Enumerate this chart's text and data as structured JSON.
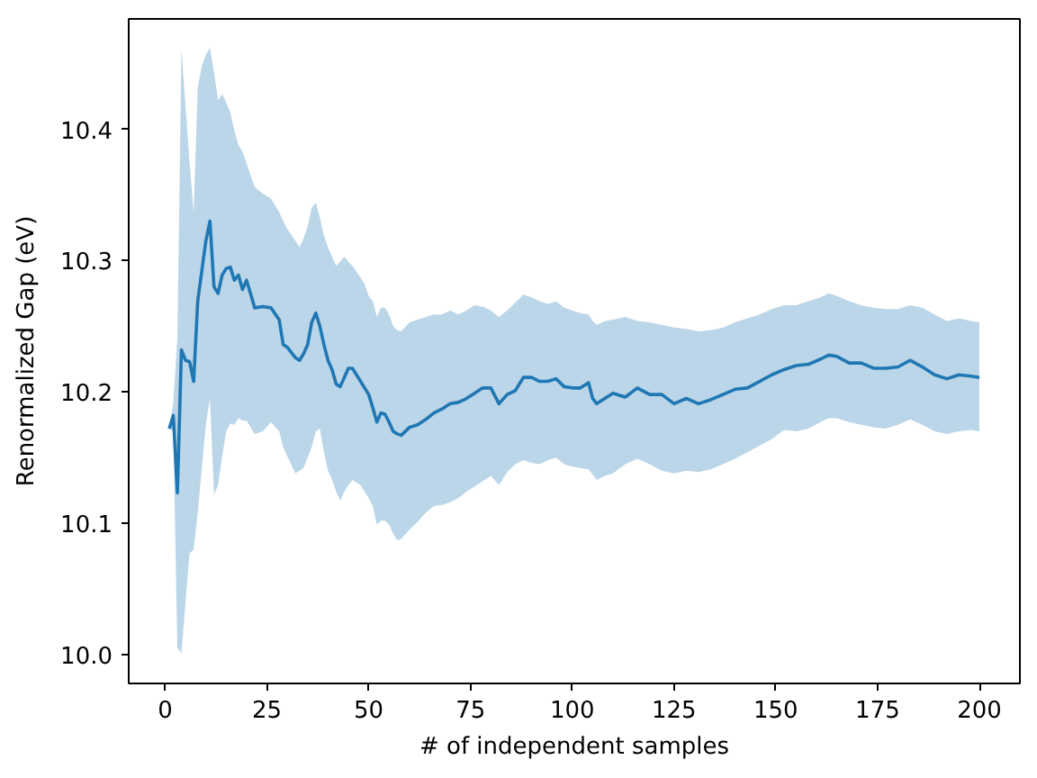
{
  "chart_data": {
    "type": "line",
    "xlabel": "# of independent samples",
    "ylabel": "Renormalized Gap (eV)",
    "x": [
      1,
      2,
      3,
      4,
      5,
      6,
      7,
      8,
      9,
      10,
      11,
      12,
      13,
      14,
      15,
      16,
      17,
      18,
      19,
      20,
      22,
      24,
      26,
      28,
      29,
      30,
      32,
      33,
      34,
      35,
      36,
      37,
      38,
      39,
      40,
      41,
      42,
      43,
      44,
      45,
      46,
      48,
      49,
      50,
      51,
      52,
      53,
      54,
      55,
      56,
      57,
      58,
      60,
      62,
      64,
      66,
      68,
      70,
      72,
      74,
      76,
      78,
      80,
      82,
      84,
      86,
      88,
      90,
      92,
      94,
      96,
      98,
      100,
      102,
      104,
      105,
      106,
      108,
      110,
      113,
      116,
      119,
      122,
      125,
      128,
      131,
      134,
      137,
      140,
      143,
      146,
      149,
      152,
      155,
      158,
      161,
      163,
      165,
      168,
      171,
      174,
      177,
      180,
      183,
      186,
      189,
      192,
      195,
      198,
      200
    ],
    "series": [
      {
        "color": "#1f77b4",
        "values": [
          10.172,
          10.182,
          10.123,
          10.232,
          10.224,
          10.223,
          10.208,
          10.269,
          10.292,
          10.315,
          10.33,
          10.28,
          10.275,
          10.289,
          10.294,
          10.295,
          10.285,
          10.289,
          10.278,
          10.285,
          10.264,
          10.265,
          10.264,
          10.255,
          10.236,
          10.234,
          10.226,
          10.224,
          10.229,
          10.236,
          10.253,
          10.26,
          10.25,
          10.236,
          10.224,
          10.217,
          10.206,
          10.204,
          10.211,
          10.218,
          10.218,
          10.208,
          10.203,
          10.198,
          10.188,
          10.177,
          10.184,
          10.183,
          10.177,
          10.17,
          10.168,
          10.167,
          10.173,
          10.175,
          10.179,
          10.184,
          10.187,
          10.191,
          10.192,
          10.195,
          10.199,
          10.203,
          10.203,
          10.191,
          10.198,
          10.201,
          10.211,
          10.211,
          10.208,
          10.208,
          10.21,
          10.204,
          10.203,
          10.203,
          10.207,
          10.195,
          10.191,
          10.195,
          10.199,
          10.196,
          10.203,
          10.198,
          10.198,
          10.191,
          10.195,
          10.191,
          10.194,
          10.198,
          10.202,
          10.203,
          10.208,
          10.213,
          10.217,
          10.22,
          10.221,
          10.225,
          10.228,
          10.227,
          10.222,
          10.222,
          10.218,
          10.218,
          10.219,
          10.224,
          10.219,
          10.213,
          10.21,
          10.213,
          10.212,
          10.211
        ],
        "lower": [
          10.172,
          10.17,
          10.005,
          10.001,
          10.04,
          10.077,
          10.08,
          10.108,
          10.142,
          10.175,
          10.195,
          10.122,
          10.129,
          10.151,
          10.17,
          10.176,
          10.175,
          10.18,
          10.178,
          10.178,
          10.168,
          10.17,
          10.177,
          10.17,
          10.158,
          10.151,
          10.138,
          10.14,
          10.142,
          10.15,
          10.158,
          10.17,
          10.172,
          10.154,
          10.14,
          10.133,
          10.124,
          10.117,
          10.124,
          10.129,
          10.133,
          10.129,
          10.124,
          10.119,
          10.113,
          10.099,
          10.102,
          10.102,
          10.099,
          10.092,
          10.087,
          10.088,
          10.095,
          10.101,
          10.108,
          10.113,
          10.114,
          10.116,
          10.119,
          10.124,
          10.128,
          10.132,
          10.136,
          10.129,
          10.139,
          10.145,
          10.148,
          10.146,
          10.145,
          10.148,
          10.15,
          10.145,
          10.143,
          10.142,
          10.141,
          10.137,
          10.133,
          10.136,
          10.138,
          10.145,
          10.149,
          10.145,
          10.14,
          10.138,
          10.14,
          10.139,
          10.141,
          10.145,
          10.149,
          10.154,
          10.159,
          10.164,
          10.171,
          10.17,
          10.172,
          10.177,
          10.18,
          10.18,
          10.177,
          10.175,
          10.173,
          10.172,
          10.175,
          10.179,
          10.175,
          10.17,
          10.168,
          10.17,
          10.171,
          10.17
        ],
        "upper": [
          10.172,
          10.192,
          10.241,
          10.461,
          10.418,
          10.374,
          10.337,
          10.432,
          10.448,
          10.457,
          10.462,
          10.443,
          10.422,
          10.427,
          10.42,
          10.413,
          10.399,
          10.388,
          10.383,
          10.374,
          10.356,
          10.351,
          10.347,
          10.337,
          10.33,
          10.324,
          10.315,
          10.31,
          10.317,
          10.326,
          10.34,
          10.344,
          10.333,
          10.319,
          10.31,
          10.303,
          10.296,
          10.299,
          10.303,
          10.299,
          10.296,
          10.287,
          10.282,
          10.273,
          10.269,
          10.257,
          10.264,
          10.264,
          10.259,
          10.25,
          10.247,
          10.246,
          10.253,
          10.255,
          10.257,
          10.259,
          10.259,
          10.262,
          10.259,
          10.262,
          10.266,
          10.265,
          10.262,
          10.257,
          10.262,
          10.268,
          10.274,
          10.272,
          10.269,
          10.267,
          10.269,
          10.264,
          10.262,
          10.26,
          10.259,
          10.254,
          10.251,
          10.254,
          10.255,
          10.257,
          10.254,
          10.253,
          10.251,
          10.249,
          10.248,
          10.246,
          10.247,
          10.249,
          10.253,
          10.256,
          10.259,
          10.263,
          10.266,
          10.266,
          10.269,
          10.272,
          10.275,
          10.273,
          10.269,
          10.266,
          10.264,
          10.263,
          10.263,
          10.266,
          10.264,
          10.259,
          10.254,
          10.256,
          10.254,
          10.253
        ]
      }
    ],
    "xlim": [
      -8.95,
      209.95
    ],
    "ylim": [
      9.978,
      10.484
    ],
    "xticks": [
      0,
      25,
      50,
      75,
      100,
      125,
      150,
      175,
      200
    ],
    "yticks": [
      {
        "value": 10,
        "label": "10.0"
      },
      10.1,
      10.2,
      10.3,
      10.4
    ],
    "grid": false,
    "line_style": "solid"
  }
}
